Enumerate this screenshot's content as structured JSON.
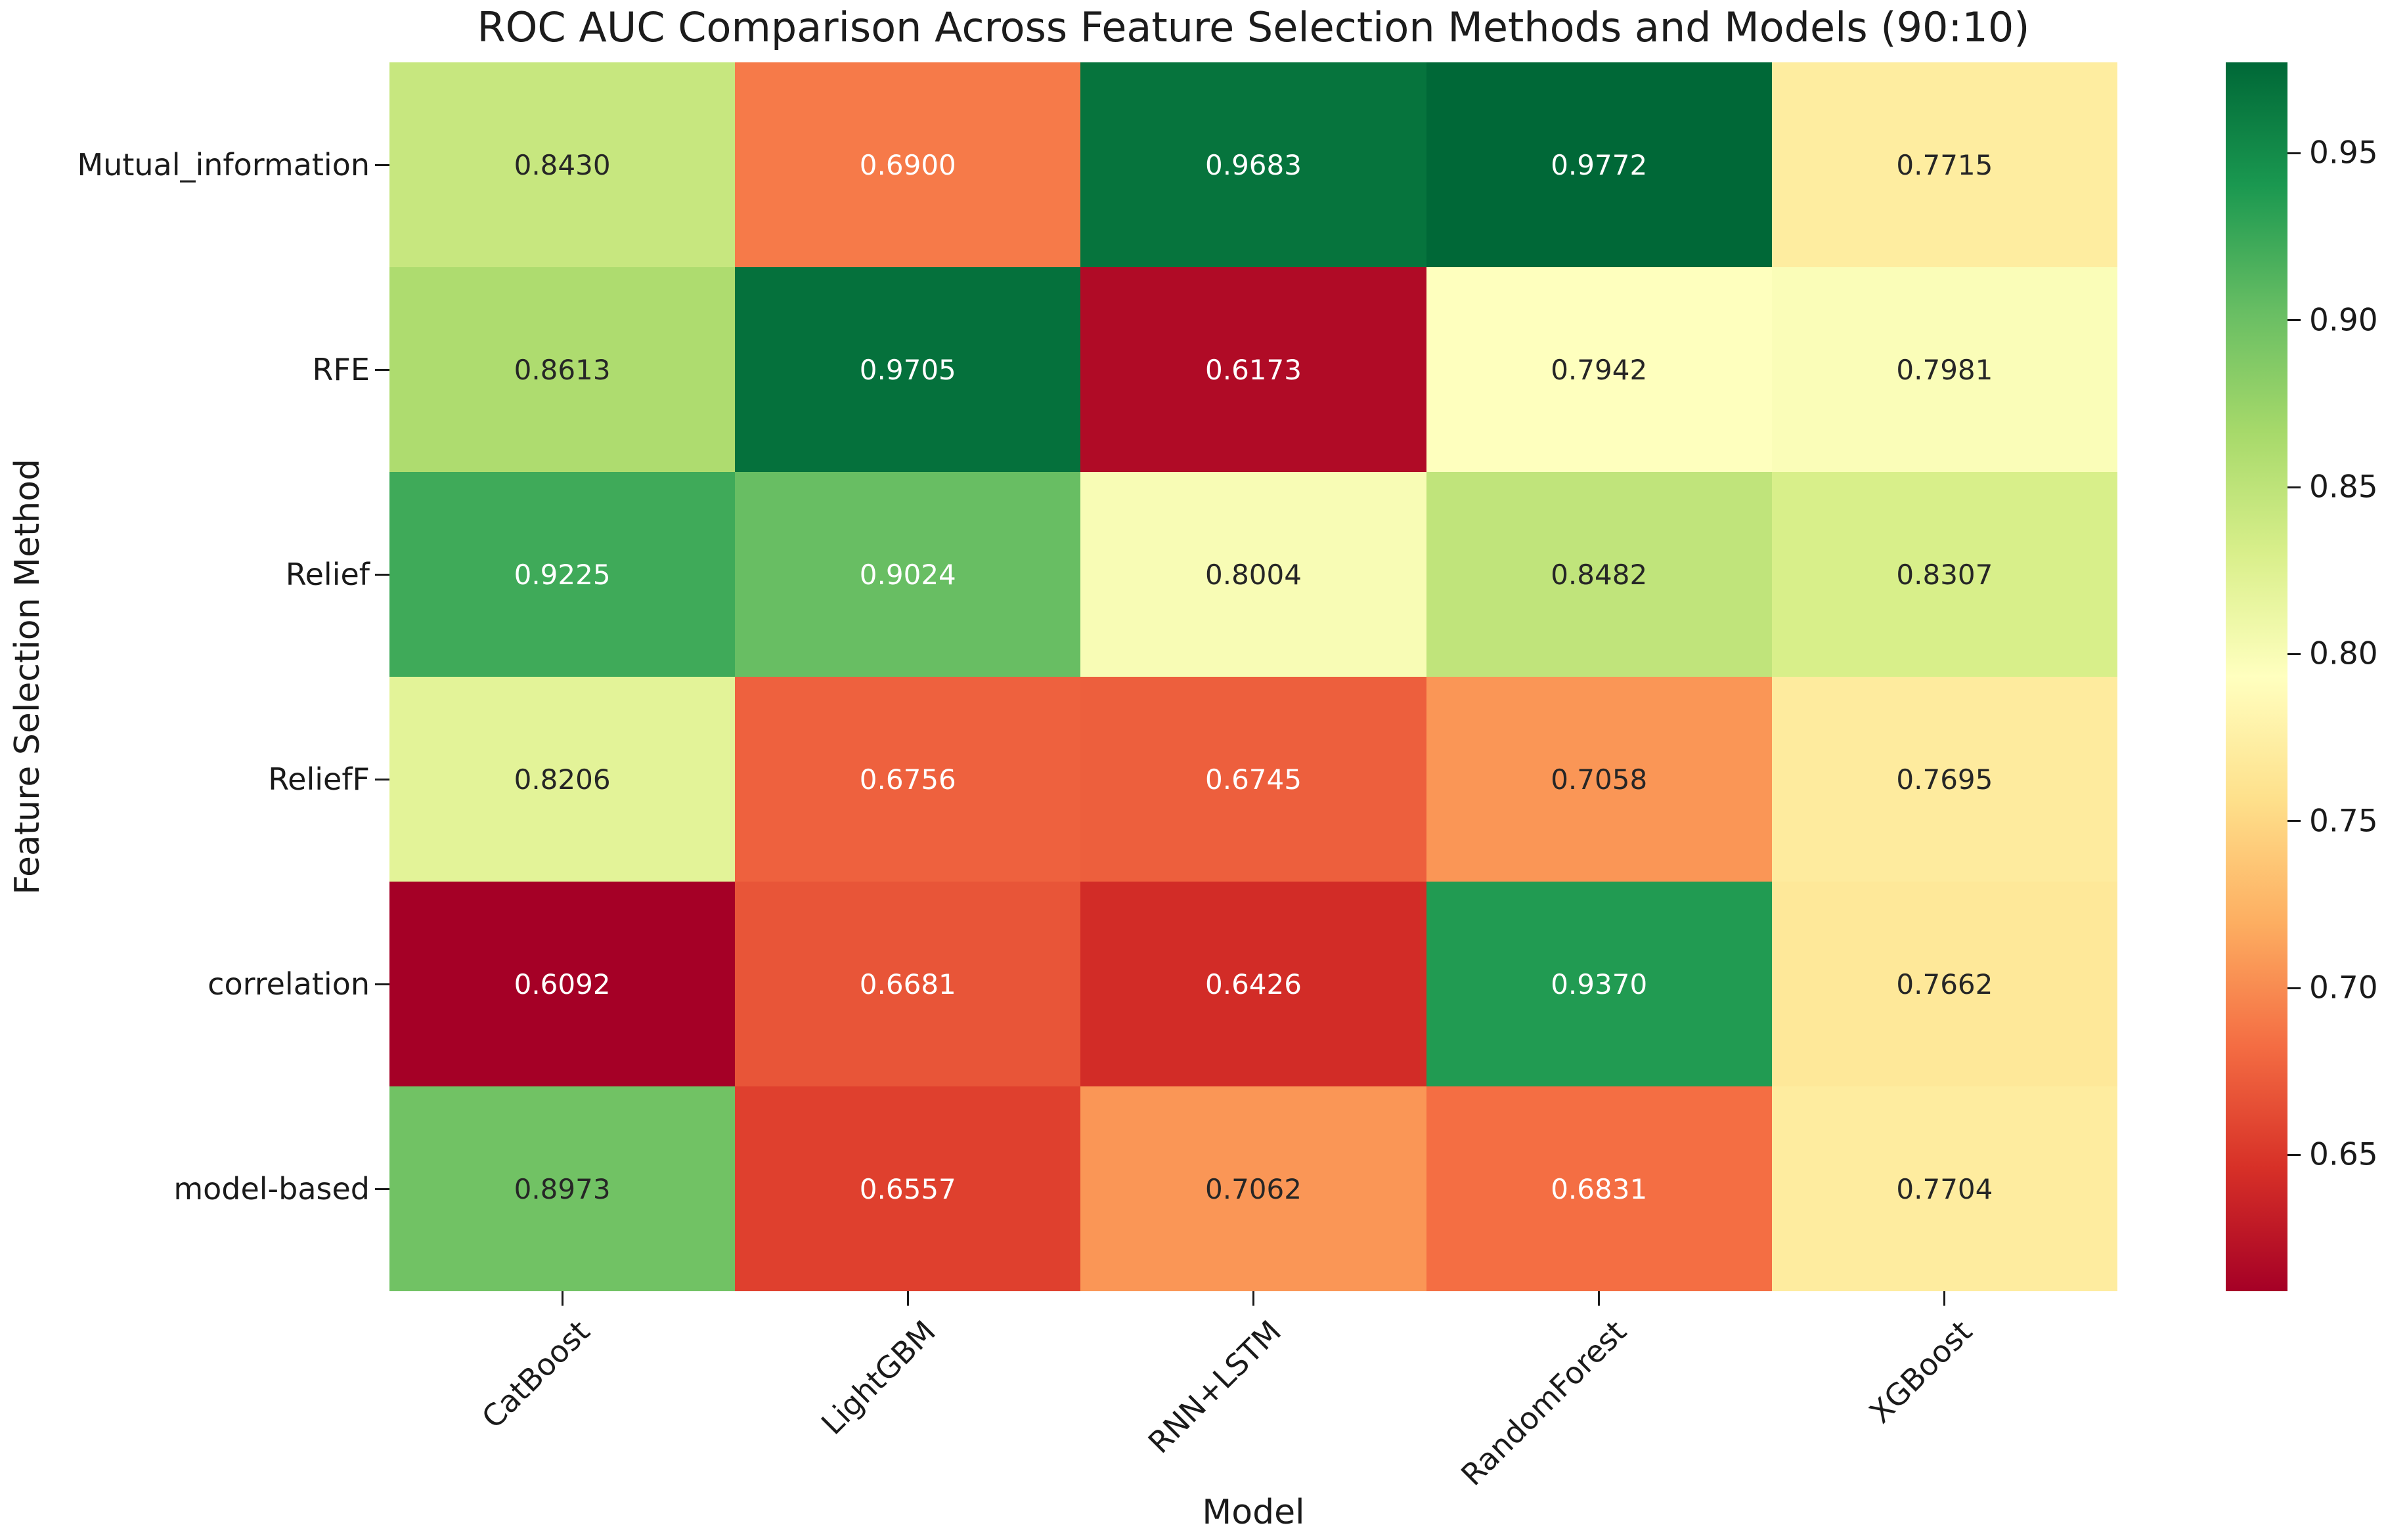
{
  "figure": {
    "background": "#ffffff"
  },
  "chart_data": {
    "type": "heatmap",
    "title": "ROC AUC Comparison Across Feature Selection Methods and Models (90:10)",
    "xlabel": "Model",
    "ylabel": "Feature Selection Method",
    "x_categories": [
      "CatBoost",
      "LightGBM",
      "RNN+LSTM",
      "RandomForest",
      "XGBoost"
    ],
    "y_categories": [
      "Mutual_information",
      "RFE",
      "Relief",
      "ReliefF",
      "correlation",
      "model-based"
    ],
    "values": [
      [
        0.843,
        0.69,
        0.9683,
        0.9772,
        0.7715
      ],
      [
        0.8613,
        0.9705,
        0.6173,
        0.7942,
        0.7981
      ],
      [
        0.9225,
        0.9024,
        0.8004,
        0.8482,
        0.8307
      ],
      [
        0.8206,
        0.6756,
        0.6745,
        0.7058,
        0.7695
      ],
      [
        0.6092,
        0.6681,
        0.6426,
        0.937,
        0.7662
      ],
      [
        0.8973,
        0.6557,
        0.7062,
        0.6831,
        0.7704
      ]
    ],
    "annotation_decimals": 4,
    "annotation_text_dark": "#262626",
    "annotation_text_light": "#ffffff",
    "colorbar": {
      "vmin": 0.6092,
      "vmax": 0.9772,
      "ticks": [
        0.95,
        0.9,
        0.85,
        0.8,
        0.75,
        0.7,
        0.65
      ],
      "tick_decimals": 2,
      "colormap": "RdYlGn",
      "colormap_stops": [
        {
          "pos": 0.0,
          "color": "#a50026"
        },
        {
          "pos": 0.1,
          "color": "#d73027"
        },
        {
          "pos": 0.2,
          "color": "#f46d43"
        },
        {
          "pos": 0.3,
          "color": "#fdae61"
        },
        {
          "pos": 0.4,
          "color": "#fee08b"
        },
        {
          "pos": 0.5,
          "color": "#ffffbf"
        },
        {
          "pos": 0.6,
          "color": "#d9ef8b"
        },
        {
          "pos": 0.7,
          "color": "#a6d96a"
        },
        {
          "pos": 0.8,
          "color": "#66bd63"
        },
        {
          "pos": 0.9,
          "color": "#1a9850"
        },
        {
          "pos": 1.0,
          "color": "#006837"
        }
      ]
    },
    "legend": "colorbar-right",
    "grid": false
  }
}
